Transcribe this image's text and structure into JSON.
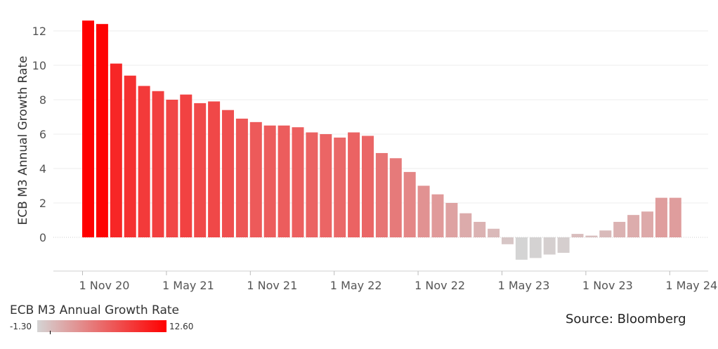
{
  "chart_data": {
    "type": "bar",
    "ylabel": "ECB M3 Annual Growth Rate",
    "ylim": [
      -2,
      13
    ],
    "yticks": [
      0,
      2,
      4,
      6,
      8,
      10,
      12
    ],
    "x_tick_labels": [
      "1 Nov 20",
      "1 May 21",
      "1 Nov 21",
      "1 May 22",
      "1 Nov 22",
      "1 May 23",
      "1 Nov 23",
      "1 May 24"
    ],
    "x_tick_indices": [
      0,
      6,
      12,
      18,
      24,
      30,
      36,
      42
    ],
    "values": [
      12.6,
      12.4,
      10.1,
      9.4,
      8.8,
      8.5,
      8.0,
      8.3,
      7.8,
      7.9,
      7.4,
      6.9,
      6.7,
      6.5,
      6.5,
      6.4,
      6.1,
      6.0,
      5.8,
      6.1,
      5.9,
      4.9,
      4.6,
      3.8,
      3.0,
      2.5,
      2.0,
      1.4,
      0.9,
      0.5,
      -0.4,
      -1.3,
      -1.2,
      -1.0,
      -0.9,
      0.2,
      0.1,
      0.4,
      0.9,
      1.3,
      1.5,
      2.3,
      2.3
    ],
    "color_scale": {
      "min": -1.3,
      "max": 12.6,
      "min_color": "#d4d4d4",
      "max_color": "#ff0000"
    },
    "grid": true
  },
  "legend": {
    "title": "ECB M3 Annual Growth Rate",
    "min_label": "-1.30",
    "max_label": "12.60"
  },
  "source": "Source: Bloomberg"
}
